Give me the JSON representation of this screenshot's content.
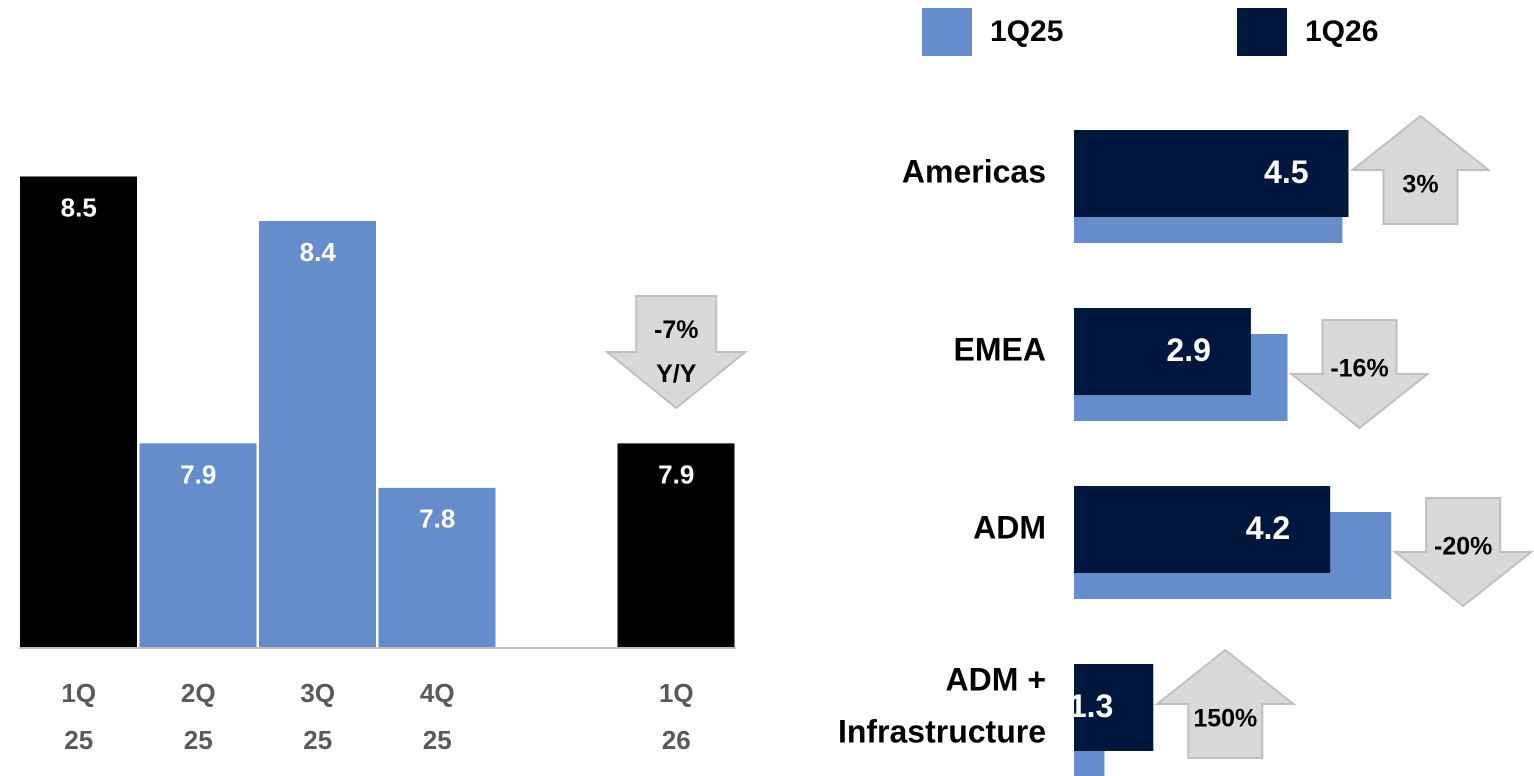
{
  "chart_data": [
    {
      "type": "bar",
      "categories": [
        "1Q 25",
        "2Q 25",
        "3Q 25",
        "4Q 25",
        null,
        "1Q 26"
      ],
      "values": [
        8.5,
        7.9,
        8.4,
        7.8,
        null,
        7.9
      ],
      "colors": [
        "#000000",
        "#658dcb",
        "#658dcb",
        "#658dcb",
        null,
        "#000000"
      ],
      "ylim": [
        7.44,
        8.6
      ],
      "annotation": "-7% Y/Y"
    },
    {
      "type": "hbar",
      "categories": [
        "Americas",
        "EMEA",
        "ADM",
        "ADM + Infrastructure"
      ],
      "series": [
        {
          "name": "1Q25",
          "color": "#658dcb",
          "values": [
            4.4,
            3.5,
            5.2,
            0.5
          ]
        },
        {
          "name": "1Q26",
          "color": "#00173d",
          "values": [
            4.5,
            2.9,
            4.2,
            1.3
          ]
        }
      ],
      "xlim": [
        0,
        7.5
      ],
      "changes": {
        "values": [
          3,
          -16,
          -20,
          150
        ],
        "value_labels": [
          "3%",
          "-16%",
          "-20%",
          "150%"
        ]
      }
    }
  ]
}
